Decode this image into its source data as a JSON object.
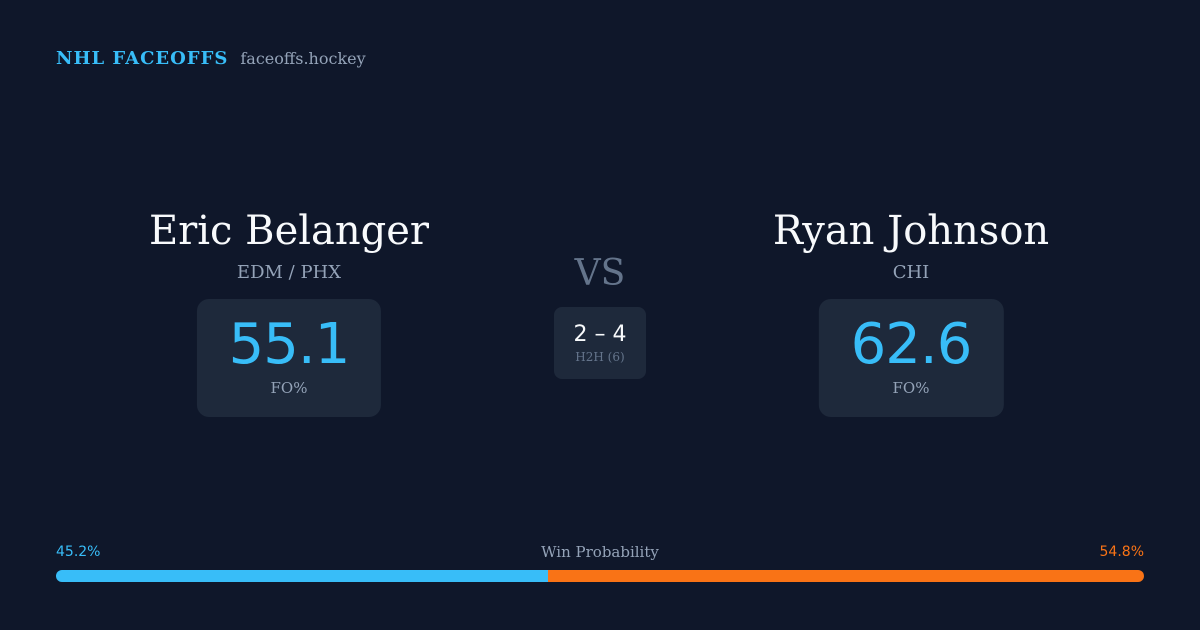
{
  "brand": {
    "name": "NHL FACEOFFS",
    "domain": "faceoffs.hockey"
  },
  "players": {
    "left": {
      "name": "Eric Belanger",
      "team": "EDM / PHX",
      "stat_value": "55.1",
      "stat_label": "FO%"
    },
    "right": {
      "name": "Ryan Johnson",
      "team": "CHI",
      "stat_value": "62.6",
      "stat_label": "FO%"
    }
  },
  "matchup": {
    "vs_label": "VS",
    "h2h_score": "2 – 4",
    "h2h_label": "H2H (6)"
  },
  "win_probability": {
    "title": "Win Probability",
    "left_label": "45.2%",
    "right_label": "54.8%",
    "left_value": 45.2,
    "right_value": 54.8
  },
  "colors": {
    "background": "#0f172a",
    "card": "#1e293b",
    "accent_blue": "#38bdf8",
    "accent_orange": "#f97316",
    "muted_text": "#94a3b8"
  }
}
